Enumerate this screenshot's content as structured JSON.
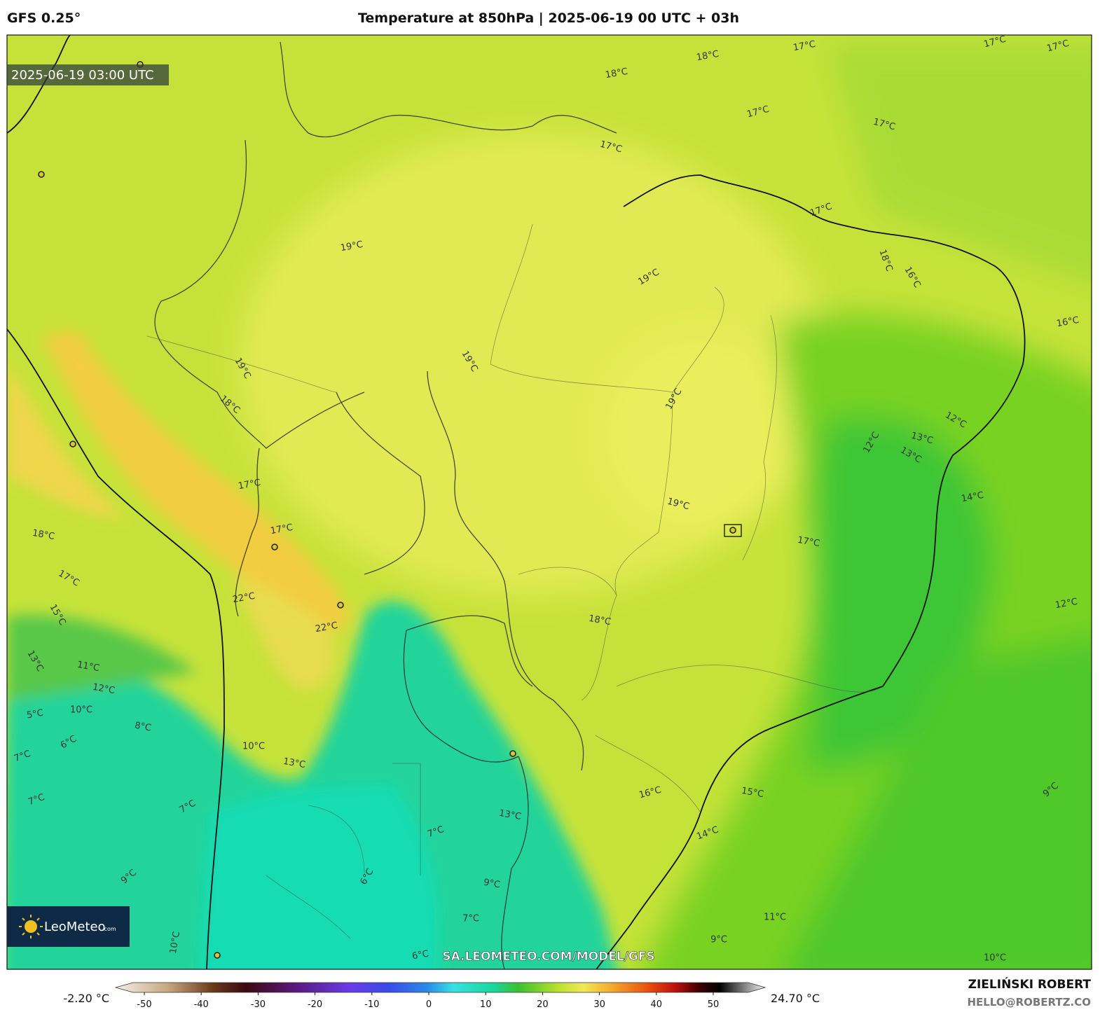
{
  "header": {
    "model": "GFS 0.25°",
    "title": "Temperature at 850hPa | 2025-06-19 00 UTC + 03h"
  },
  "timestamp": "2025-06-19 03:00 UTC",
  "logo": {
    "name": "LeoMeteo",
    "suffix": ".com"
  },
  "watermark": "SA.LEOMETEO.COM/MODEL/GFS",
  "author": {
    "name": "ZIELIŃSKI ROBERT",
    "email": "HELLO@ROBERTZ.CO"
  },
  "colorbar": {
    "min_label": "-2.20 °C",
    "max_label": "24.70 °C",
    "ticks": [
      -50,
      -40,
      -30,
      -20,
      -10,
      0,
      10,
      20,
      30,
      40,
      50
    ]
  },
  "contour_labels": [
    "18°C",
    "17°C",
    "17°C",
    "17°C",
    "18°C",
    "17°C",
    "17°C",
    "17°C",
    "17°C",
    "19°C",
    "19°C",
    "18°C",
    "16°C",
    "16°C",
    "19°C",
    "19°C",
    "18°C",
    "19°C",
    "12°C",
    "12°C",
    "13°C",
    "13°C",
    "17°C",
    "14°C",
    "19°C",
    "17°C",
    "18°C",
    "17°C",
    "17°C",
    "12°C",
    "22°C",
    "22°C",
    "18°C",
    "15°C",
    "13°C",
    "11°C",
    "12°C",
    "10°C",
    "5°C",
    "8°C",
    "6°C",
    "7°C",
    "10°C",
    "13°C",
    "7°C",
    "7°C",
    "16°C",
    "15°C",
    "13°C",
    "7°C",
    "14°C",
    "9°C",
    "9°C",
    "6°C",
    "9°C",
    "11°C",
    "7°C",
    "9°C",
    "10°C",
    "6°C",
    "10°C"
  ]
}
